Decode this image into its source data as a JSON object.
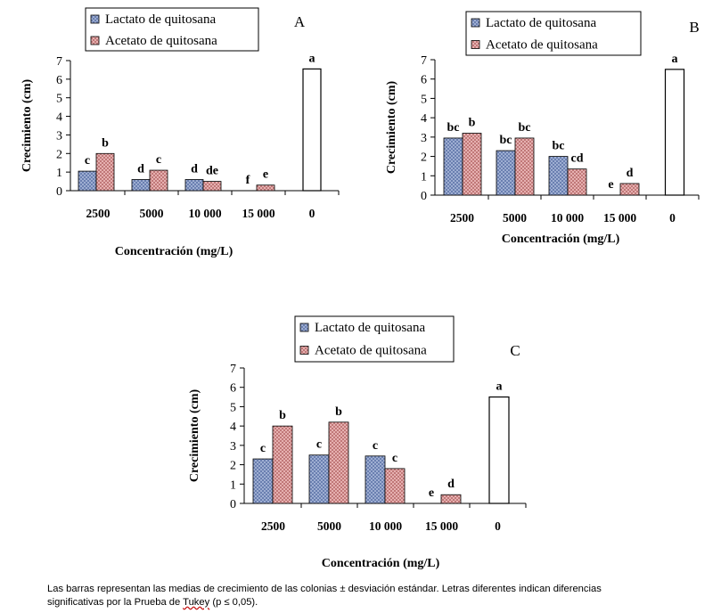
{
  "caption": {
    "line1": "Las barras representan las medias de crecimiento de las colonias ± desviación estándar. Letras diferentes indican diferencias",
    "line2_pre": "significativas por la Prueba de ",
    "line2_word": "Tukey",
    "line2_post": " (p ≤ 0,05)."
  },
  "colors": {
    "lactato": "#8fa0c8",
    "acetato": "#d89a9a",
    "control": "#ffffff"
  },
  "chart_data": [
    {
      "type": "bar",
      "panel": "A",
      "categories": [
        "2500",
        "5000",
        "10 000",
        "15 000",
        "0"
      ],
      "xlabel": "Concentración (mg/L)",
      "ylabel": "Crecimiento (cm)",
      "ylim": [
        0,
        7
      ],
      "yticks": [
        "0",
        "1",
        "2",
        "3",
        "4",
        "5",
        "6",
        "7"
      ],
      "legend_position": "top-left",
      "grid": false,
      "series": [
        {
          "name": "Lactato de quitosana",
          "values": [
            1.05,
            0.6,
            0.6,
            null,
            null
          ],
          "letters": [
            "c",
            "d",
            "d",
            "f",
            ""
          ]
        },
        {
          "name": "Acetato de quitosana",
          "values": [
            2.0,
            1.1,
            0.5,
            0.3,
            null
          ],
          "letters": [
            "b",
            "c",
            "de",
            "e",
            ""
          ]
        },
        {
          "values": [
            null,
            null,
            null,
            null,
            6.55
          ],
          "letters": [
            "",
            "",
            "",
            "",
            "a"
          ]
        }
      ]
    },
    {
      "type": "bar",
      "panel": "B",
      "categories": [
        "2500",
        "5000",
        "10 000",
        "15 000",
        "0"
      ],
      "xlabel": "Concentración (mg/L)",
      "ylabel": "Crecimiento (cm)",
      "ylim": [
        0,
        7
      ],
      "yticks": [
        "0",
        "1",
        "2",
        "3",
        "4",
        "5",
        "6",
        "7"
      ],
      "legend_position": "top-left",
      "grid": false,
      "series": [
        {
          "name": "Lactato de quitosana",
          "values": [
            2.95,
            2.3,
            2.0,
            null,
            null
          ],
          "letters": [
            "bc",
            "bc",
            "bc",
            "e",
            ""
          ]
        },
        {
          "name": "Acetato de quitosana",
          "values": [
            3.2,
            2.95,
            1.35,
            0.6,
            null
          ],
          "letters": [
            "b",
            "bc",
            "cd",
            "d",
            ""
          ]
        },
        {
          "values": [
            null,
            null,
            null,
            null,
            6.5
          ],
          "letters": [
            "",
            "",
            "",
            "",
            "a"
          ]
        }
      ]
    },
    {
      "type": "bar",
      "panel": "C",
      "categories": [
        "2500",
        "5000",
        "10 000",
        "15 000",
        "0"
      ],
      "xlabel": "Concentración (mg/L)",
      "ylabel": "Crecimiento (cm)",
      "ylim": [
        0,
        7
      ],
      "yticks": [
        "0",
        "1",
        "2",
        "3",
        "4",
        "5",
        "6",
        "7"
      ],
      "legend_position": "top-left",
      "grid": false,
      "series": [
        {
          "name": "Lactato de quitosana",
          "values": [
            2.3,
            2.5,
            2.45,
            null,
            null
          ],
          "letters": [
            "c",
            "c",
            "c",
            "e",
            ""
          ]
        },
        {
          "name": "Acetato de quitosana",
          "values": [
            4.0,
            4.2,
            1.8,
            0.45,
            null
          ],
          "letters": [
            "b",
            "b",
            "c",
            "d",
            ""
          ]
        },
        {
          "values": [
            null,
            null,
            null,
            null,
            5.5
          ],
          "letters": [
            "",
            "",
            "",
            "",
            "a"
          ]
        }
      ]
    }
  ]
}
